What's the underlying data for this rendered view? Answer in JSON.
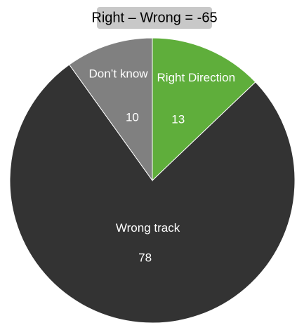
{
  "chart_data": {
    "type": "pie",
    "title": "Right – Wrong = -65",
    "categories": [
      "Right Direction",
      "Wrong track",
      "Don’t know"
    ],
    "values": [
      13,
      78,
      10
    ],
    "colors": [
      "#5fae3b",
      "#333333",
      "#808080"
    ]
  }
}
